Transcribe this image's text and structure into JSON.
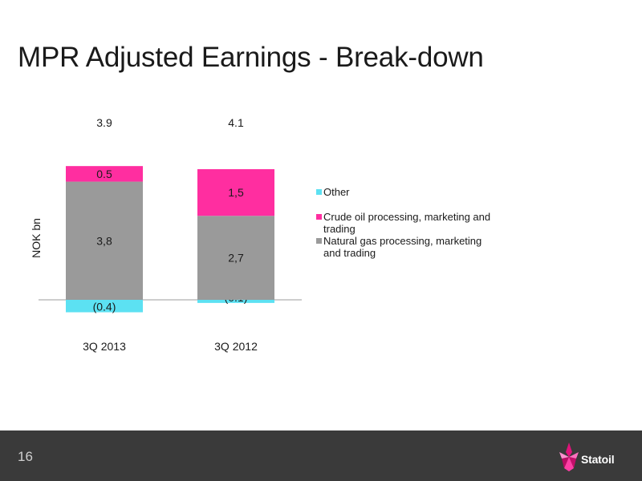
{
  "slide": {
    "title": "MPR Adjusted Earnings - Break-down",
    "page_number": "16",
    "logo_text": "Statoil"
  },
  "colors": {
    "other": "#5ce1f2",
    "crude": "#ff2ea0",
    "natural_gas": "#9a9a9a",
    "footer": "#3a3a3a"
  },
  "chart_data": {
    "type": "bar",
    "stacked": true,
    "categories": [
      "3Q 2013",
      "3Q 2012"
    ],
    "ylabel": "NOK bn",
    "totals": [
      {
        "value": 3.9,
        "label": "3.9"
      },
      {
        "value": 4.1,
        "label": "4.1"
      }
    ],
    "series": [
      {
        "name": "Other",
        "color": "#5ce1f2",
        "values": [
          -0.4,
          -0.1
        ],
        "labels": [
          "(0.4)",
          "(0.1)"
        ]
      },
      {
        "name": "Natural gas processing, marketing and trading",
        "color": "#9a9a9a",
        "values": [
          3.8,
          2.7
        ],
        "labels": [
          "3,8",
          "2,7"
        ]
      },
      {
        "name": "Crude oil processing, marketing and trading",
        "color": "#ff2ea0",
        "values": [
          0.5,
          1.5
        ],
        "labels": [
          "0.5",
          "1,5"
        ]
      }
    ],
    "legend": {
      "position": "right",
      "entries": [
        {
          "label": "Other",
          "color": "#5ce1f2"
        },
        {
          "label": "Crude oil processing, marketing and trading",
          "color": "#ff2ea0"
        },
        {
          "label": "Natural gas processing, marketing and trading",
          "color": "#9a9a9a"
        }
      ]
    }
  }
}
